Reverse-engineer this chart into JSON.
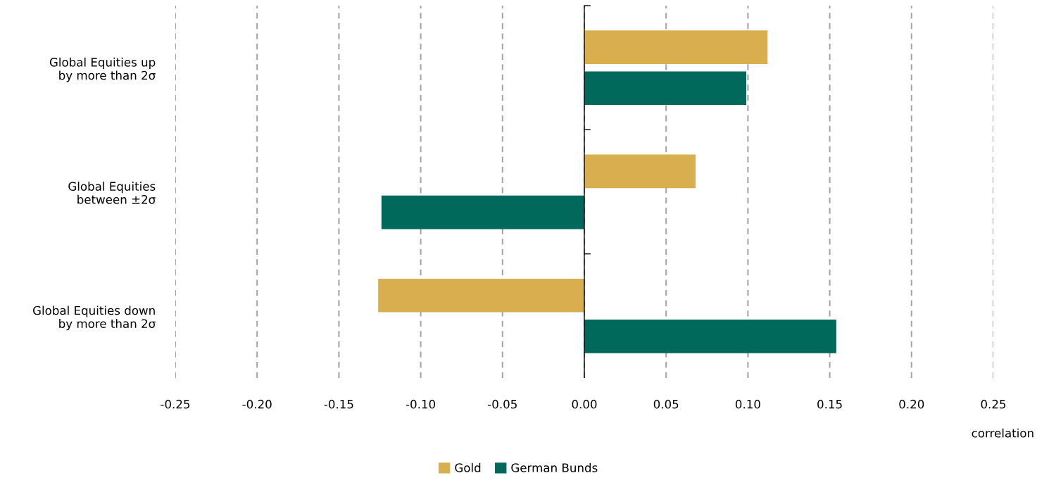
{
  "chart_data": {
    "type": "bar",
    "orientation": "horizontal",
    "categories": [
      "Global Equities up\nby more than 2σ",
      "Global Equities\nbetween ±2σ",
      "Global Equities down\nby more than 2σ"
    ],
    "series": [
      {
        "name": "Gold",
        "color": "#d9ae4e",
        "values": [
          0.112,
          0.068,
          -0.126
        ]
      },
      {
        "name": "German Bunds",
        "color": "#00695c",
        "values": [
          0.099,
          -0.124,
          0.154
        ]
      }
    ],
    "xlabel": "correlation",
    "xlim": [
      -0.25,
      0.25
    ],
    "xticks": [
      {
        "value": -0.25,
        "label": "-0.25"
      },
      {
        "value": -0.2,
        "label": "-0.20"
      },
      {
        "value": -0.15,
        "label": "-0.15"
      },
      {
        "value": -0.1,
        "label": "-0.10"
      },
      {
        "value": -0.05,
        "label": "-0.05"
      },
      {
        "value": 0,
        "label": "0.00"
      },
      {
        "value": 0.05,
        "label": "0.05"
      },
      {
        "value": 0.1,
        "label": "0.10"
      },
      {
        "value": 0.15,
        "label": "0.15"
      },
      {
        "value": 0.2,
        "label": "0.20"
      },
      {
        "value": 0.25,
        "label": "0.25"
      }
    ],
    "grid": "x",
    "legend": "bottom"
  }
}
